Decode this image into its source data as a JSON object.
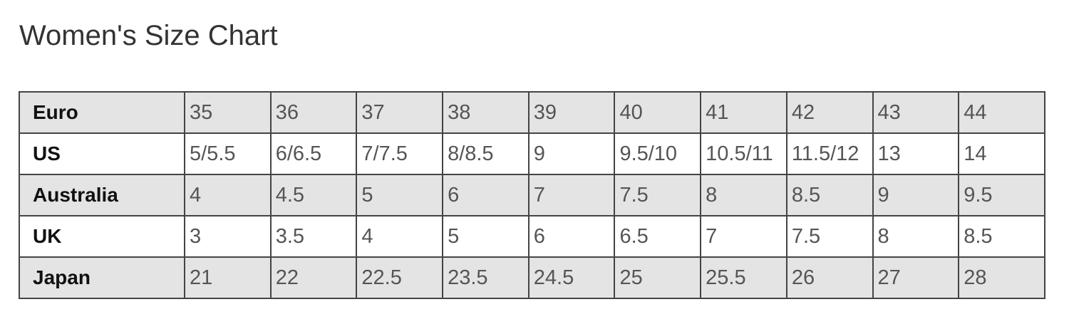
{
  "title": "Women's Size Chart",
  "colors": {
    "shaded_row": "#e4e4e4",
    "border": "#444444"
  },
  "rows": [
    {
      "label": "Euro",
      "values": [
        "35",
        "36",
        "37",
        "38",
        "39",
        "40",
        "41",
        "42",
        "43",
        "44"
      ]
    },
    {
      "label": "US",
      "values": [
        "5/5.5",
        "6/6.5",
        "7/7.5",
        "8/8.5",
        "9",
        "9.5/10",
        "10.5/11",
        "11.5/12",
        "13",
        "14"
      ]
    },
    {
      "label": "Australia",
      "values": [
        "4",
        "4.5",
        "5",
        "6",
        "7",
        "7.5",
        "8",
        "8.5",
        "9",
        "9.5"
      ]
    },
    {
      "label": "UK",
      "values": [
        "3",
        "3.5",
        "4",
        "5",
        "6",
        "6.5",
        "7",
        "7.5",
        "8",
        "8.5"
      ]
    },
    {
      "label": "Japan",
      "values": [
        "21",
        "22",
        "22.5",
        "23.5",
        "24.5",
        "25",
        "25.5",
        "26",
        "27",
        "28"
      ]
    }
  ]
}
